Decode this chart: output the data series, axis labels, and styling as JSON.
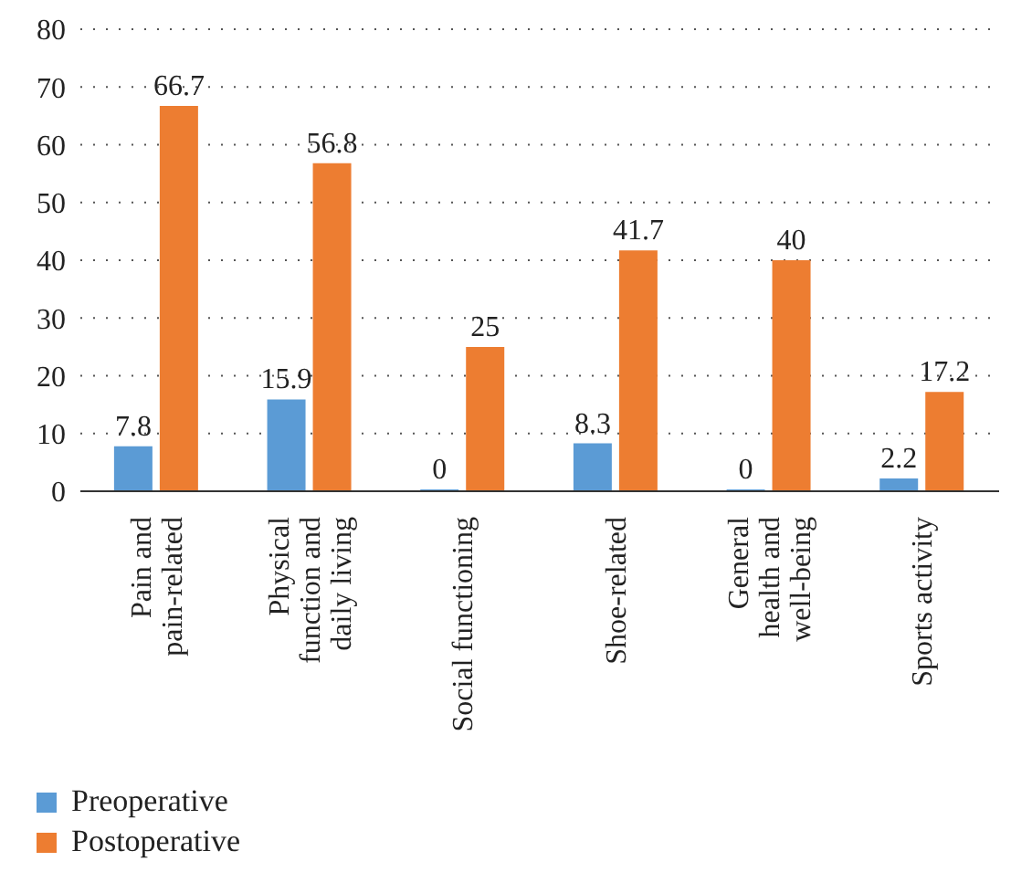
{
  "chart_data": {
    "type": "bar",
    "categories": [
      "Pain and\npain-related",
      "Physical\nfunction and\ndaily living",
      "Social functioning",
      "Shoe-related",
      "General\nhealth and\nwell-being",
      "Sports activity"
    ],
    "series": [
      {
        "name": "Preoperative",
        "color": "#5b9bd5",
        "values": [
          7.8,
          15.9,
          0,
          8.3,
          0,
          2.2
        ]
      },
      {
        "name": "Postoperative",
        "color": "#ed7d31",
        "values": [
          66.7,
          56.8,
          25,
          41.7,
          40,
          17.2
        ]
      }
    ],
    "ylim": [
      0,
      80
    ],
    "yticks": [
      0,
      10,
      20,
      30,
      40,
      50,
      60,
      70,
      80
    ],
    "grid": "y",
    "legend": "bottom left",
    "data_labels": true
  }
}
